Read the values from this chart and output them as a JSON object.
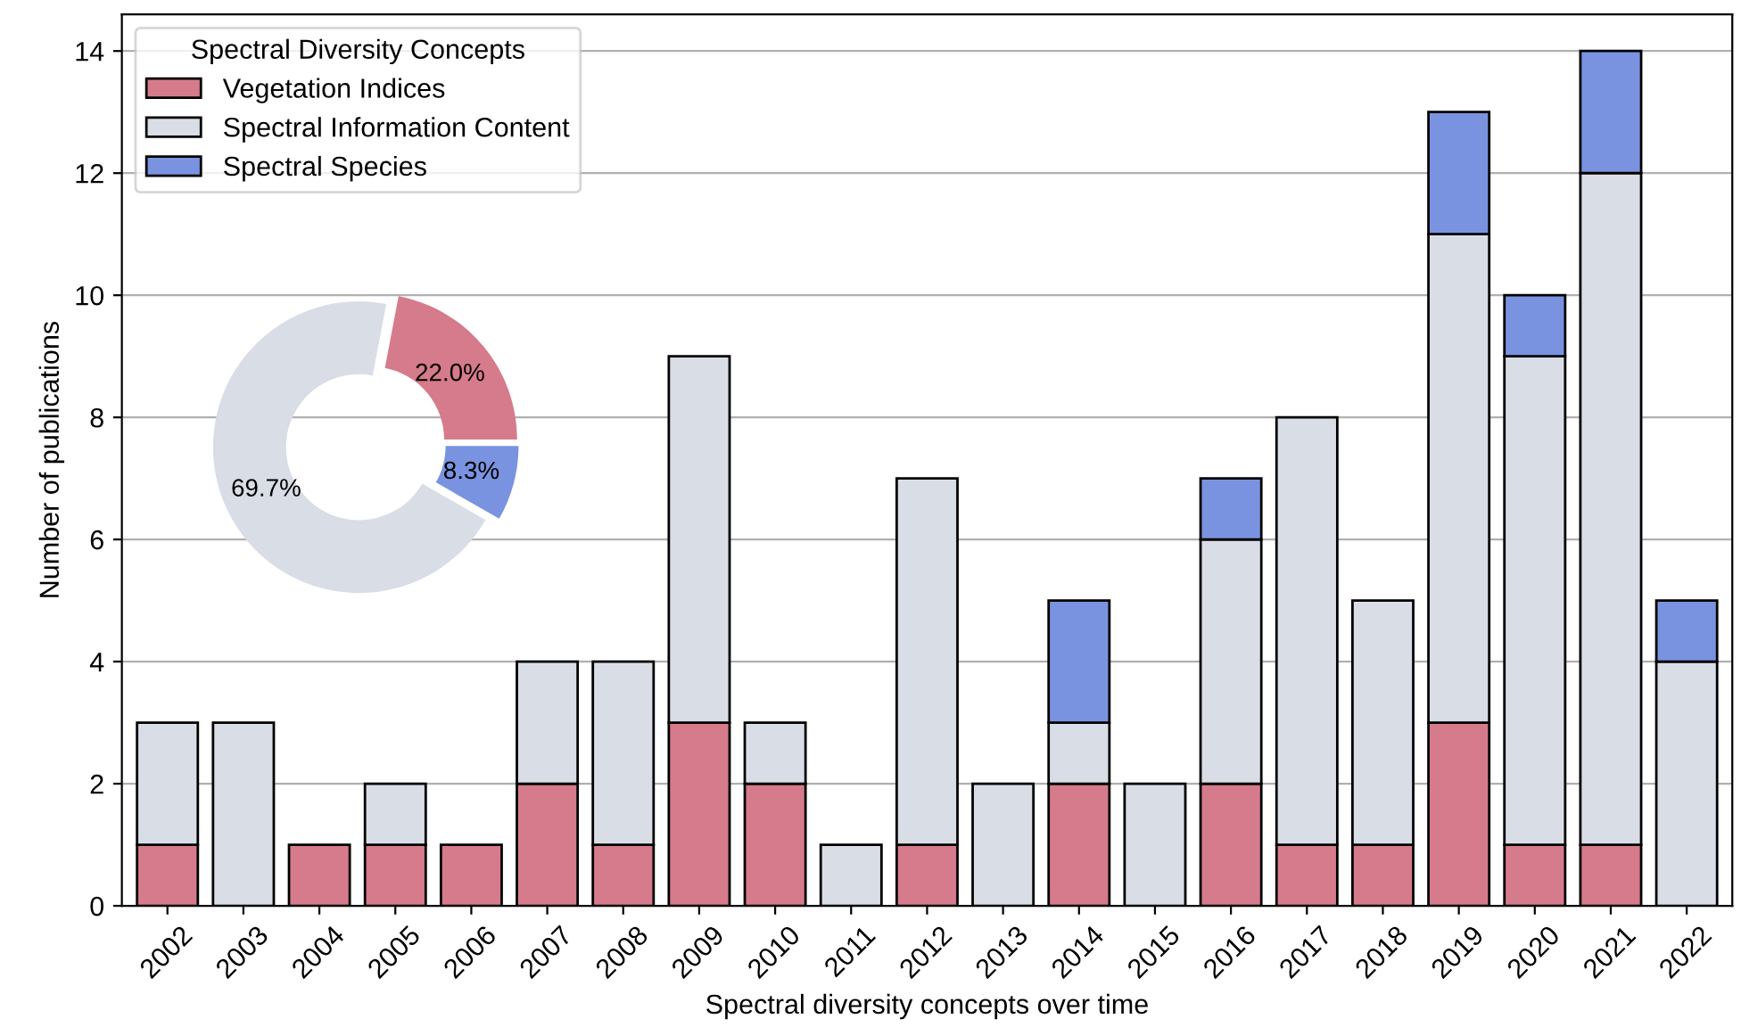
{
  "chart_data": [
    {
      "type": "bar",
      "stacked": true,
      "xlabel": "Spectral diversity concepts over time",
      "ylabel": "Number of publications",
      "categories": [
        "2002",
        "2003",
        "2004",
        "2005",
        "2006",
        "2007",
        "2008",
        "2009",
        "2010",
        "2011",
        "2012",
        "2013",
        "2014",
        "2015",
        "2016",
        "2017",
        "2018",
        "2019",
        "2020",
        "2021",
        "2022"
      ],
      "series": [
        {
          "name": "Vegetation Indices",
          "color": "#d67b8b",
          "values": [
            1,
            null,
            1,
            1,
            1,
            2,
            1,
            3,
            2,
            null,
            1,
            null,
            2,
            null,
            2,
            1,
            1,
            3,
            1,
            1,
            null
          ]
        },
        {
          "name": "Spectral Information Content",
          "color": "#d9dde6",
          "values": [
            2,
            3,
            null,
            1,
            null,
            2,
            3,
            6,
            1,
            1,
            6,
            2,
            1,
            2,
            4,
            7,
            4,
            8,
            8,
            11,
            4
          ]
        },
        {
          "name": "Spectral Species",
          "color": "#7a93e0",
          "values": [
            null,
            null,
            null,
            null,
            null,
            null,
            null,
            null,
            null,
            null,
            null,
            null,
            2,
            null,
            1,
            null,
            null,
            2,
            1,
            2,
            1
          ]
        }
      ],
      "ylim": [
        0,
        14.6
      ],
      "yticks": [
        0,
        2,
        4,
        6,
        8,
        10,
        12,
        14
      ],
      "grid": "y",
      "legend": "top left",
      "legend_title": "Spectral Diversity Concepts"
    },
    {
      "type": "donut",
      "categories": [
        null,
        null,
        null
      ],
      "values": [
        22.0,
        69.7,
        8.3
      ],
      "colors": [
        "#d67b8b",
        "#d9dde6",
        "#7a93e0"
      ],
      "value_labels": [
        "22.0%",
        "69.7%",
        "8.3%"
      ]
    }
  ]
}
